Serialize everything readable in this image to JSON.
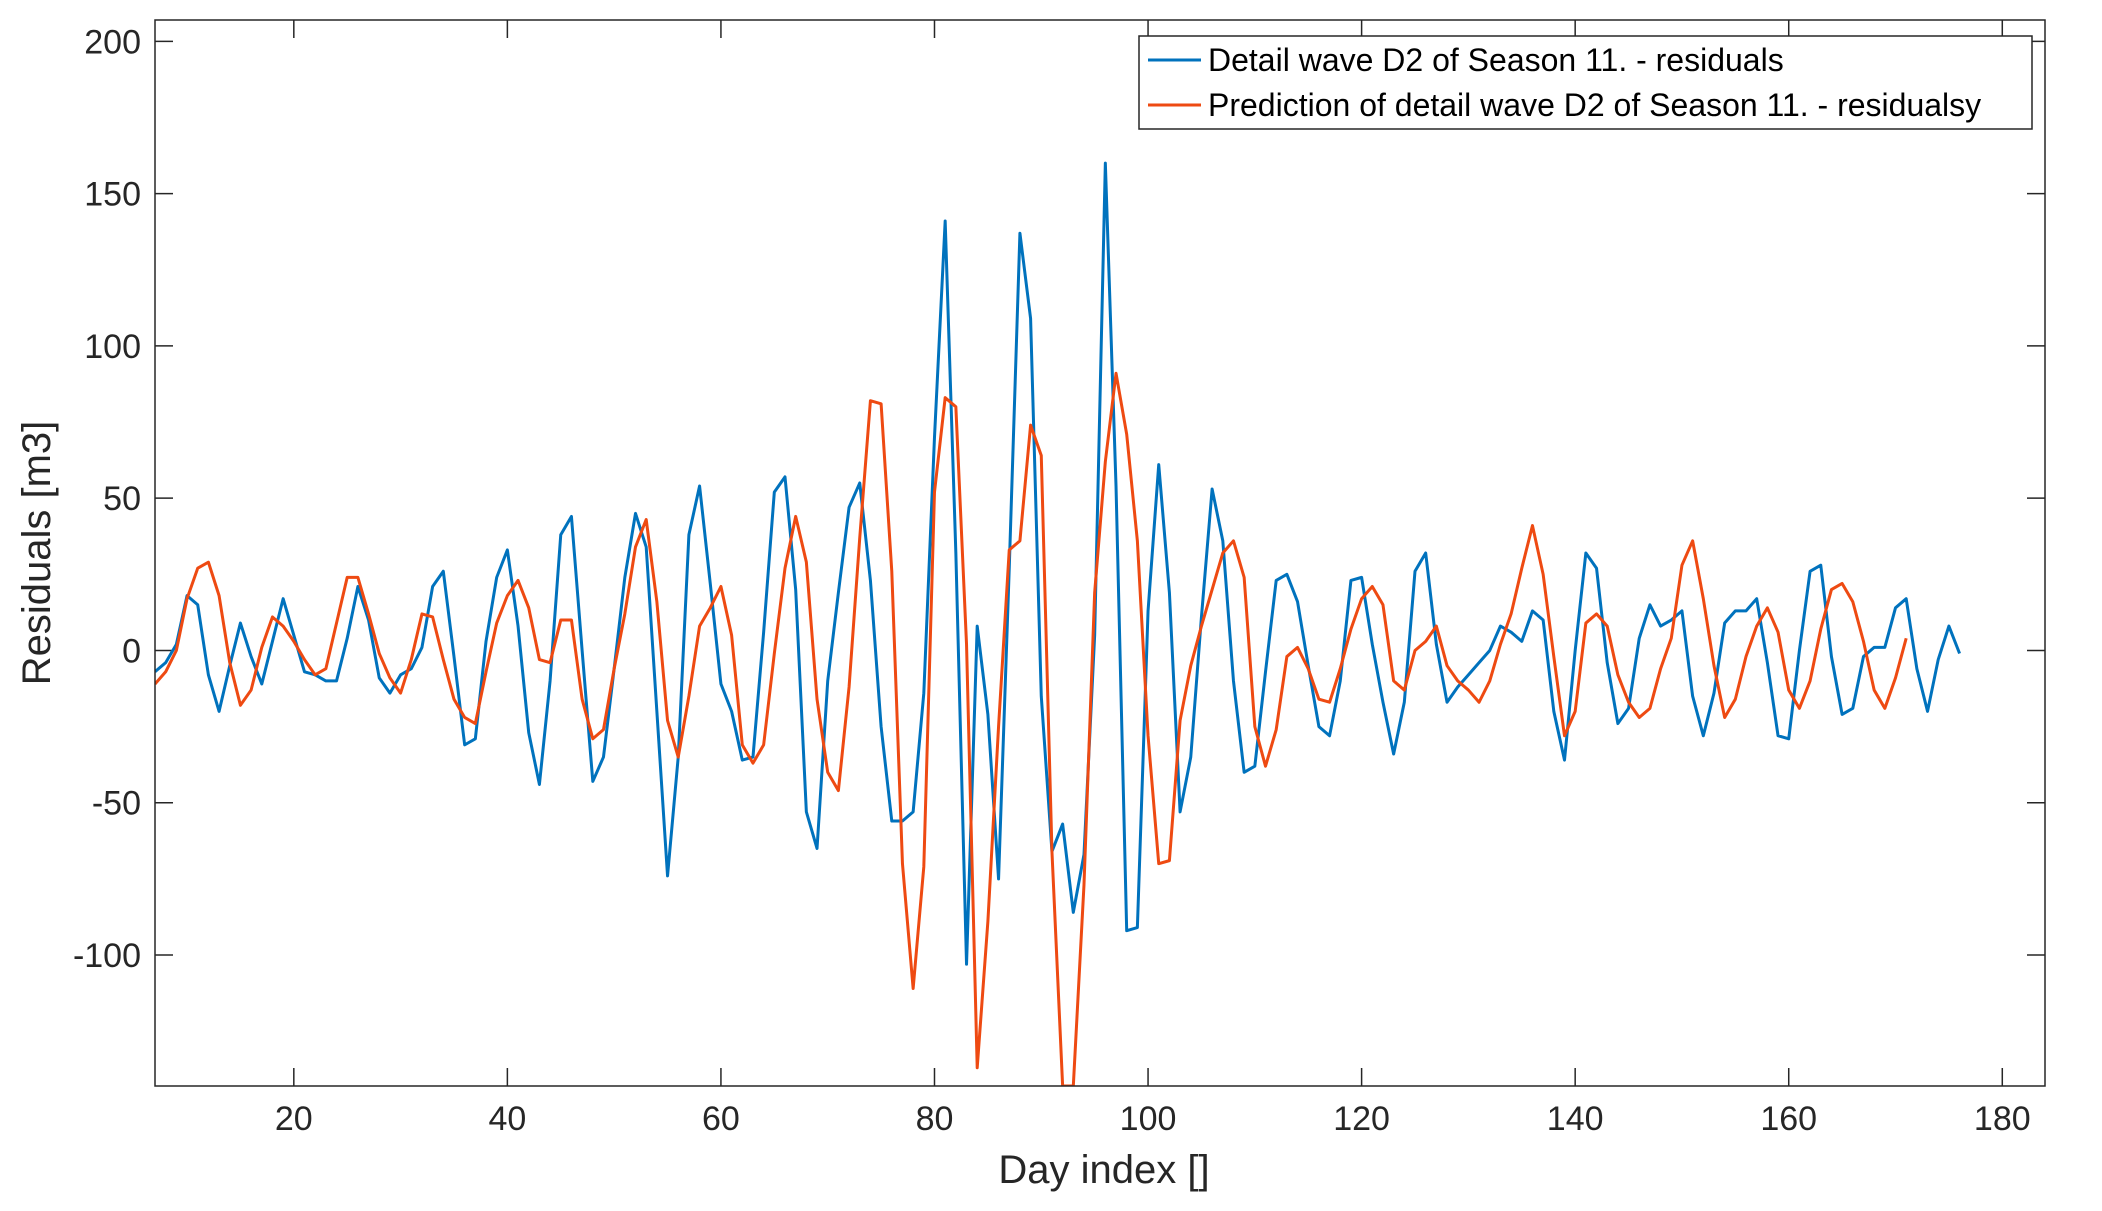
{
  "colors": {
    "series1": "#0072BD",
    "series2": "#EE4A12",
    "axis": "#262626"
  },
  "chart_data": {
    "type": "line",
    "title": "",
    "xlabel": "Day index []",
    "ylabel": "Residuals [m3]",
    "xlim": [
      7,
      184
    ],
    "ylim": [
      -143,
      207
    ],
    "xticks": [
      20,
      40,
      60,
      80,
      100,
      120,
      140,
      160,
      180
    ],
    "yticks": [
      -100,
      -50,
      0,
      50,
      100,
      150,
      200
    ],
    "xtick_labels": [
      "20",
      "40",
      "60",
      "80",
      "100",
      "120",
      "140",
      "160",
      "180"
    ],
    "ytick_labels": [
      "-100",
      "-50",
      "0",
      "50",
      "100",
      "150",
      "200"
    ],
    "legend_position": "top-right",
    "series": [
      {
        "name": "Detail wave D2 of Season 11. - residuals",
        "x_start": 7,
        "values": [
          -7,
          -4,
          2,
          18,
          15,
          -8,
          -20,
          -5,
          9,
          -2,
          -11,
          3,
          17,
          5,
          -7,
          -8,
          -10,
          -10,
          4,
          21,
          10,
          -9,
          -14,
          -8,
          -6,
          1,
          21,
          26,
          -2,
          -31,
          -29,
          3,
          24,
          33,
          8,
          -27,
          -44,
          -10,
          38,
          44,
          0,
          -43,
          -35,
          -6,
          24,
          45,
          34,
          -20,
          -74,
          -35,
          38,
          54,
          22,
          -11,
          -20,
          -36,
          -35,
          6,
          52,
          57,
          20,
          -53,
          -65,
          -10,
          19,
          47,
          55,
          23,
          -25,
          -56,
          -56,
          -53,
          -14,
          70,
          141,
          32,
          -103,
          8,
          -21,
          -75,
          27,
          137,
          109,
          -15,
          -66,
          -57,
          -86,
          -67,
          5,
          160,
          54,
          -92,
          -91,
          13,
          61,
          19,
          -53,
          -35,
          11,
          53,
          36,
          -10,
          -40,
          -38,
          -7,
          23,
          25,
          16,
          -5,
          -25,
          -28,
          -10,
          23,
          24,
          2,
          -17,
          -34,
          -17,
          26,
          32,
          2,
          -17,
          -12,
          -8,
          -4,
          0,
          8,
          6,
          3,
          13,
          10,
          -20,
          -36,
          0,
          32,
          27,
          -4,
          -24,
          -19,
          4,
          15,
          8,
          10,
          13,
          -15,
          -28,
          -14,
          9,
          13,
          13,
          17,
          -4,
          -28,
          -29,
          0,
          26,
          28,
          -2,
          -21,
          -19,
          -2,
          1,
          1,
          14,
          17,
          -6,
          -20,
          -3,
          8,
          -1
        ]
      },
      {
        "name": "Prediction of  detail wave D2 of Season 11. - residualsy",
        "x_start": 7,
        "values": [
          -11,
          -7,
          0,
          17,
          27,
          29,
          18,
          -4,
          -18,
          -13,
          1,
          11,
          8,
          3,
          -3,
          -8,
          -6,
          9,
          24,
          24,
          12,
          -1,
          -9,
          -14,
          -3,
          12,
          11,
          -3,
          -16,
          -22,
          -24,
          -7,
          9,
          18,
          23,
          14,
          -3,
          -4,
          10,
          10,
          -16,
          -29,
          -26,
          -6,
          12,
          34,
          43,
          16,
          -23,
          -35,
          -15,
          8,
          14,
          21,
          5,
          -31,
          -37,
          -31,
          -1,
          27,
          44,
          29,
          -16,
          -40,
          -46,
          -12,
          37,
          82,
          81,
          26,
          -70,
          -111,
          -71,
          52,
          83,
          80,
          2,
          -137,
          -89,
          -25,
          33,
          36,
          74,
          64,
          -66,
          -143,
          -143,
          -77,
          19,
          62,
          91,
          71,
          36,
          -28,
          -70,
          -69,
          -23,
          -5,
          8,
          20,
          32,
          36,
          24,
          -25,
          -38,
          -26,
          -2,
          1,
          -6,
          -16,
          -17,
          -6,
          7,
          17,
          21,
          15,
          -10,
          -13,
          0,
          3,
          8,
          -5,
          -10,
          -13,
          -17,
          -10,
          2,
          12,
          27,
          41,
          25,
          -2,
          -28,
          -20,
          9,
          12,
          8,
          -8,
          -17,
          -22,
          -19,
          -6,
          4,
          28,
          36,
          17,
          -5,
          -22,
          -16,
          -2,
          8,
          14,
          6,
          -13,
          -19,
          -10,
          7,
          20,
          22,
          16,
          3,
          -13,
          -19,
          -9,
          4
        ]
      }
    ]
  }
}
